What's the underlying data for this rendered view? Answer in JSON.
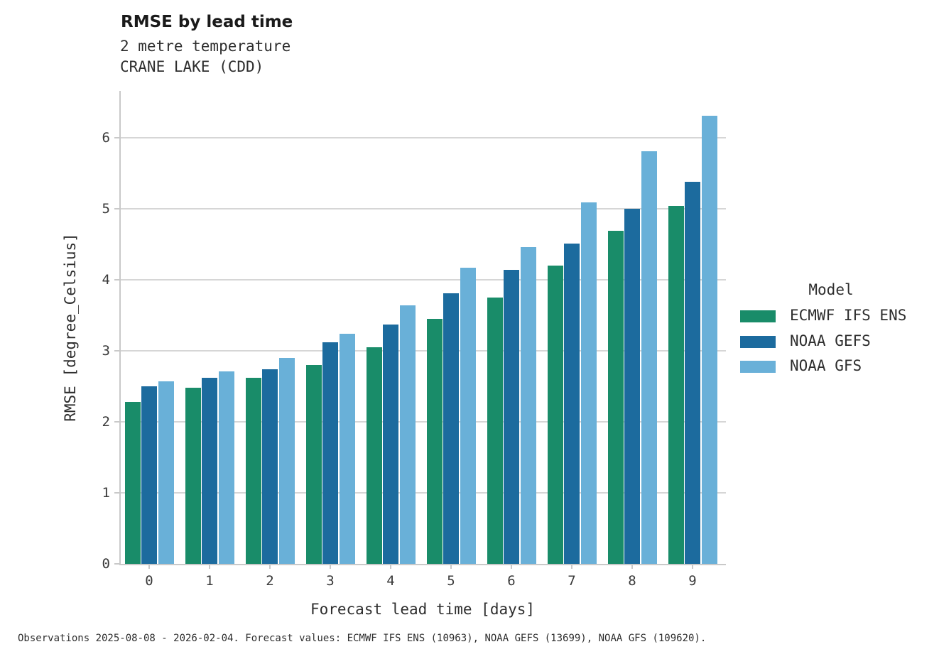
{
  "header": {
    "title": "RMSE by lead time",
    "subtitle1": "2 metre temperature",
    "subtitle2": "CRANE LAKE (CDD)"
  },
  "footer": {
    "note": "Observations 2025-08-08 - 2026-02-04. Forecast values: ECMWF IFS ENS (10963), NOAA GEFS (13699), NOAA GFS (109620)."
  },
  "legend": {
    "title": "Model",
    "entries": [
      {
        "label": "ECMWF IFS ENS",
        "color": "#198c69"
      },
      {
        "label": "NOAA GEFS",
        "color": "#1c6b9e"
      },
      {
        "label": "NOAA GFS",
        "color": "#69b0d8"
      }
    ]
  },
  "chart_data": {
    "type": "bar",
    "title": "RMSE by lead time",
    "subtitle": "2 metre temperature — CRANE LAKE (CDD)",
    "xlabel": "Forecast lead time [days]",
    "ylabel": "RMSE [degree_Celsius]",
    "categories": [
      "0",
      "1",
      "2",
      "3",
      "4",
      "5",
      "6",
      "7",
      "8",
      "9"
    ],
    "series": [
      {
        "name": "ECMWF IFS ENS",
        "color": "#198c69",
        "values": [
          2.28,
          2.48,
          2.62,
          2.8,
          3.05,
          3.45,
          3.75,
          4.2,
          4.69,
          5.04
        ]
      },
      {
        "name": "NOAA GEFS",
        "color": "#1c6b9e",
        "values": [
          2.5,
          2.62,
          2.74,
          3.12,
          3.37,
          3.81,
          4.14,
          4.51,
          5.0,
          5.38
        ]
      },
      {
        "name": "NOAA GFS",
        "color": "#69b0d8",
        "values": [
          2.57,
          2.71,
          2.9,
          3.24,
          3.64,
          4.17,
          4.46,
          5.09,
          5.81,
          6.31
        ]
      }
    ],
    "ylim": [
      0,
      6.6
    ],
    "yticks": [
      0,
      1,
      2,
      3,
      4,
      5,
      6
    ],
    "grid": "horizontal",
    "legend_position": "right",
    "legend_title": "Model"
  }
}
